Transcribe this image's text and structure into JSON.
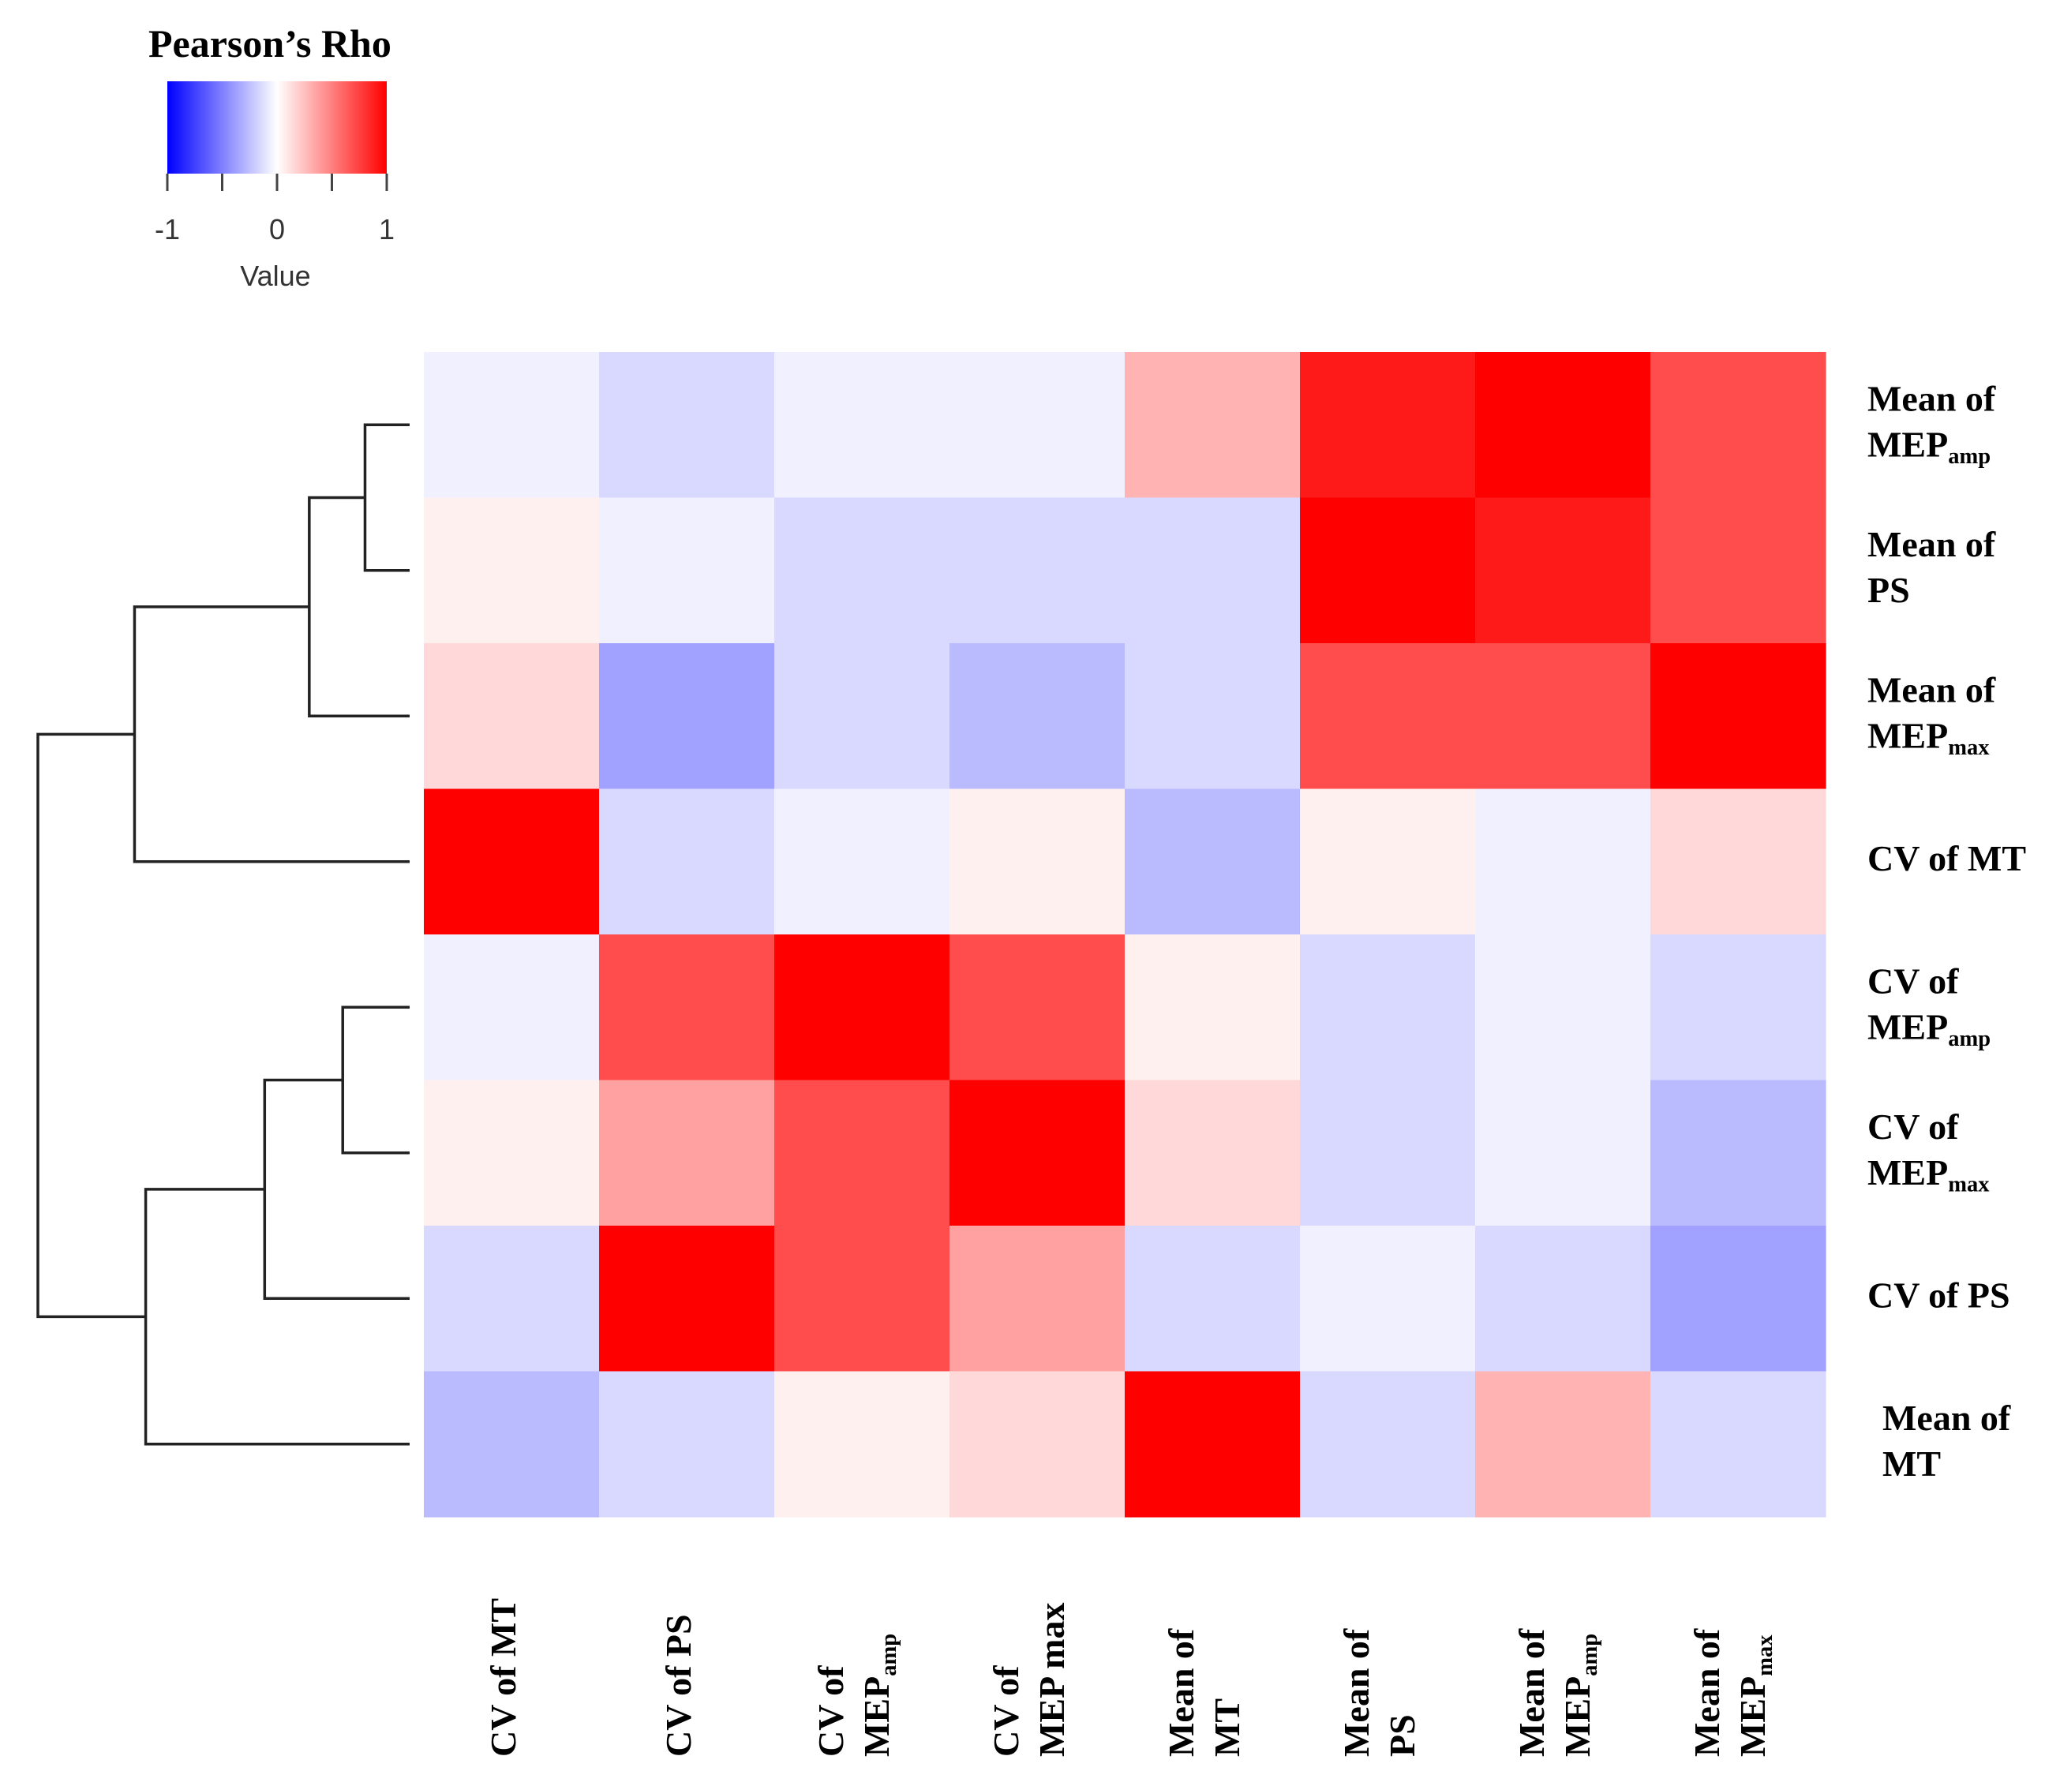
{
  "chart_data": {
    "type": "heatmap",
    "title": "",
    "legend": {
      "title": "Pearson’s Rho",
      "ticks": [
        "-1",
        "0",
        "1"
      ],
      "tick_values": [
        -1,
        0,
        1
      ],
      "minor_ticks": [
        -0.5,
        0.5
      ],
      "label": "Value",
      "low_color": "#0000ff",
      "mid_color": "#ffffff",
      "high_color": "#ff0000",
      "placement": "top-left"
    },
    "rows": [
      {
        "main": "Mean of",
        "sub": "MEP",
        "subscript": "amp"
      },
      {
        "main": "Mean of",
        "sub": "PS",
        "subscript": ""
      },
      {
        "main": "Mean of",
        "sub": "MEP",
        "subscript": "max"
      },
      {
        "main": "CV of MT",
        "sub": "",
        "subscript": ""
      },
      {
        "main": "CV of",
        "sub": "MEP",
        "subscript": "amp"
      },
      {
        "main": "CV of",
        "sub": "MEP",
        "subscript": "max"
      },
      {
        "main": "CV of  PS",
        "sub": "",
        "subscript": ""
      },
      {
        "main": "Mean of",
        "sub": "MT",
        "subscript": ""
      }
    ],
    "columns": [
      {
        "main": "CV of MT",
        "sub": "",
        "subscript": ""
      },
      {
        "main": "CV of  PS",
        "sub": "",
        "subscript": ""
      },
      {
        "main": "CV of",
        "sub": "MEP",
        "subscript": "amp"
      },
      {
        "main": "CV of",
        "sub": "MEP max",
        "subscript": ""
      },
      {
        "main": "Mean of",
        "sub": "MT",
        "subscript": ""
      },
      {
        "main": "Mean of",
        "sub": "PS",
        "subscript": ""
      },
      {
        "main": "Mean of",
        "sub": "MEP",
        "subscript": "amp"
      },
      {
        "main": "Mean of",
        "sub": "MEP",
        "subscript": "max"
      }
    ],
    "values": [
      [
        -0.06,
        -0.15,
        -0.06,
        -0.06,
        0.3,
        0.9,
        1.0,
        0.7
      ],
      [
        0.06,
        -0.06,
        -0.15,
        -0.15,
        -0.15,
        1.0,
        0.9,
        0.7
      ],
      [
        0.15,
        -0.37,
        -0.15,
        -0.27,
        -0.15,
        0.7,
        0.7,
        1.0
      ],
      [
        1.0,
        -0.15,
        -0.06,
        0.06,
        -0.27,
        0.06,
        -0.06,
        0.15
      ],
      [
        -0.06,
        0.7,
        1.0,
        0.7,
        0.06,
        -0.15,
        -0.06,
        -0.15
      ],
      [
        0.06,
        0.37,
        0.7,
        1.0,
        0.15,
        -0.15,
        -0.06,
        -0.27
      ],
      [
        -0.15,
        1.0,
        0.7,
        0.37,
        -0.15,
        -0.06,
        -0.15,
        -0.37
      ],
      [
        -0.27,
        -0.15,
        0.06,
        0.15,
        1.0,
        -0.15,
        0.3,
        -0.15
      ]
    ],
    "vlim": [
      -1,
      1
    ],
    "dendrogram": {
      "side": "left",
      "merges": [
        {
          "a": 0,
          "b": 1,
          "height": 0.12
        },
        {
          "a": 4,
          "b": 5,
          "height": 0.18
        },
        {
          "a": "m0",
          "b": 2,
          "height": 0.27
        },
        {
          "a": "m1",
          "b": 6,
          "height": 0.39
        },
        {
          "a": "m2",
          "b": 3,
          "height": 0.74
        },
        {
          "a": "m3",
          "b": 7,
          "height": 0.71
        },
        {
          "a": "m4",
          "b": "m5",
          "height": 1.0
        }
      ]
    }
  }
}
